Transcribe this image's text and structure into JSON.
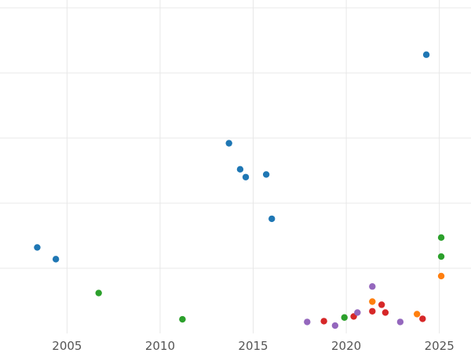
{
  "chart_data": {
    "type": "scatter",
    "title": "",
    "xlabel": "",
    "ylabel": "",
    "xlim": [
      2001.4,
      2026.7
    ],
    "ylim": [
      -0.5,
      12.3
    ],
    "x_ticks": [
      2005,
      2010,
      2015,
      2020,
      2025
    ],
    "x_tick_labels": [
      "2005",
      "2010",
      "2015",
      "2020",
      "2025"
    ],
    "y_gridlines": [
      2,
      4.5,
      7,
      9.5,
      12
    ],
    "grid": true,
    "legend": "none",
    "series": [
      {
        "color": "#1f77b4",
        "points": [
          [
            2003.4,
            2.8
          ],
          [
            2004.4,
            2.35
          ],
          [
            2013.7,
            6.8
          ],
          [
            2014.3,
            5.8
          ],
          [
            2014.6,
            5.5
          ],
          [
            2015.7,
            5.6
          ],
          [
            2016.0,
            3.9
          ],
          [
            2024.3,
            10.2
          ]
        ]
      },
      {
        "color": "#ff7f0e",
        "points": [
          [
            2021.4,
            0.72
          ],
          [
            2023.8,
            0.24
          ],
          [
            2025.1,
            1.7
          ]
        ]
      },
      {
        "color": "#2ca02c",
        "points": [
          [
            2006.7,
            1.05
          ],
          [
            2011.2,
            0.04
          ],
          [
            2019.9,
            0.11
          ],
          [
            2025.1,
            2.45
          ],
          [
            2025.1,
            3.18
          ]
        ]
      },
      {
        "color": "#d62728",
        "points": [
          [
            2018.8,
            -0.03
          ],
          [
            2020.4,
            0.15
          ],
          [
            2021.4,
            0.35
          ],
          [
            2021.9,
            0.6
          ],
          [
            2022.1,
            0.3
          ],
          [
            2024.1,
            0.06
          ]
        ]
      },
      {
        "color": "#9467bd",
        "points": [
          [
            2017.9,
            -0.06
          ],
          [
            2019.4,
            -0.2
          ],
          [
            2020.6,
            0.3
          ],
          [
            2021.4,
            1.3
          ],
          [
            2022.9,
            -0.06
          ]
        ]
      }
    ]
  }
}
